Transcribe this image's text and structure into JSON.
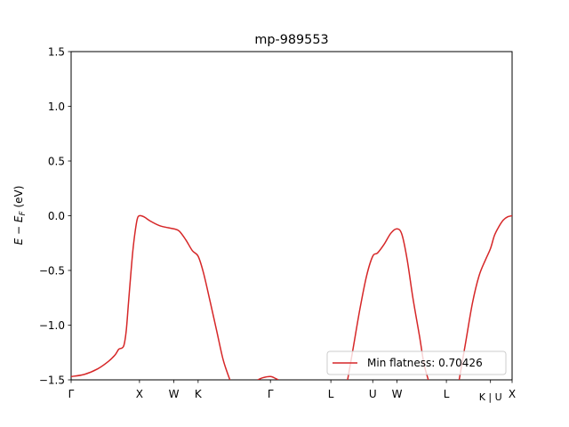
{
  "chart_data": {
    "type": "line",
    "title": "mp-989553",
    "xlabel": "",
    "ylabel_main": "E − E",
    "ylabel_sub": "F",
    "ylabel_unit": " (eV)",
    "ylim": [
      -1.5,
      1.5
    ],
    "xlim": [
      0,
      1
    ],
    "yticks": [
      {
        "value": -1.5,
        "label": "−1.5"
      },
      {
        "value": -1.0,
        "label": "−1.0"
      },
      {
        "value": -0.5,
        "label": "−0.5"
      },
      {
        "value": 0.0,
        "label": "0.0"
      },
      {
        "value": 0.5,
        "label": "0.5"
      },
      {
        "value": 1.0,
        "label": "1.0"
      },
      {
        "value": 1.5,
        "label": "1.5"
      }
    ],
    "xticks": [
      {
        "value": 0.0,
        "label": "Γ"
      },
      {
        "value": 0.155,
        "label": "X"
      },
      {
        "value": 0.233,
        "label": "W"
      },
      {
        "value": 0.288,
        "label": "K"
      },
      {
        "value": 0.452,
        "label": "Γ"
      },
      {
        "value": 0.589,
        "label": "L"
      },
      {
        "value": 0.684,
        "label": "U"
      },
      {
        "value": 0.739,
        "label": "W"
      },
      {
        "value": 0.851,
        "label": "L"
      },
      {
        "value": 0.951,
        "label": "K | U"
      },
      {
        "value": 1.0,
        "label": "X"
      }
    ],
    "series": [
      {
        "name": "Min flatness: 0.70426",
        "color": "#d62728",
        "segments": [
          [
            [
              0.0,
              -1.47
            ],
            [
              0.03,
              -1.45
            ],
            [
              0.06,
              -1.4
            ],
            [
              0.085,
              -1.33
            ],
            [
              0.1,
              -1.27
            ],
            [
              0.108,
              -1.22
            ],
            [
              0.115,
              -1.21
            ],
            [
              0.12,
              -1.18
            ],
            [
              0.125,
              -1.05
            ],
            [
              0.13,
              -0.8
            ],
            [
              0.135,
              -0.55
            ],
            [
              0.14,
              -0.32
            ],
            [
              0.145,
              -0.15
            ],
            [
              0.15,
              -0.03
            ],
            [
              0.155,
              0.0
            ],
            [
              0.165,
              -0.01
            ],
            [
              0.18,
              -0.05
            ],
            [
              0.2,
              -0.09
            ],
            [
              0.22,
              -0.11
            ],
            [
              0.233,
              -0.12
            ],
            [
              0.245,
              -0.14
            ],
            [
              0.26,
              -0.22
            ],
            [
              0.275,
              -0.32
            ],
            [
              0.288,
              -0.37
            ],
            [
              0.3,
              -0.52
            ],
            [
              0.315,
              -0.78
            ],
            [
              0.33,
              -1.05
            ],
            [
              0.345,
              -1.32
            ],
            [
              0.36,
              -1.5
            ]
          ],
          [
            [
              0.423,
              -1.5
            ],
            [
              0.435,
              -1.48
            ],
            [
              0.452,
              -1.47
            ],
            [
              0.465,
              -1.49
            ],
            [
              0.47,
              -1.5
            ]
          ],
          [
            [
              0.627,
              -1.5
            ],
            [
              0.64,
              -1.2
            ],
            [
              0.655,
              -0.85
            ],
            [
              0.67,
              -0.55
            ],
            [
              0.684,
              -0.37
            ],
            [
              0.695,
              -0.34
            ],
            [
              0.71,
              -0.26
            ],
            [
              0.725,
              -0.16
            ],
            [
              0.739,
              -0.12
            ],
            [
              0.75,
              -0.17
            ],
            [
              0.762,
              -0.4
            ],
            [
              0.775,
              -0.75
            ],
            [
              0.79,
              -1.1
            ],
            [
              0.8,
              -1.35
            ],
            [
              0.81,
              -1.5
            ]
          ],
          [
            [
              0.88,
              -1.5
            ],
            [
              0.895,
              -1.15
            ],
            [
              0.91,
              -0.8
            ],
            [
              0.925,
              -0.55
            ],
            [
              0.94,
              -0.4
            ],
            [
              0.951,
              -0.3
            ],
            [
              0.96,
              -0.18
            ],
            [
              0.97,
              -0.1
            ],
            [
              0.98,
              -0.04
            ],
            [
              0.99,
              -0.01
            ],
            [
              1.0,
              0.0
            ]
          ]
        ]
      }
    ],
    "legend_location": "lower-right"
  }
}
